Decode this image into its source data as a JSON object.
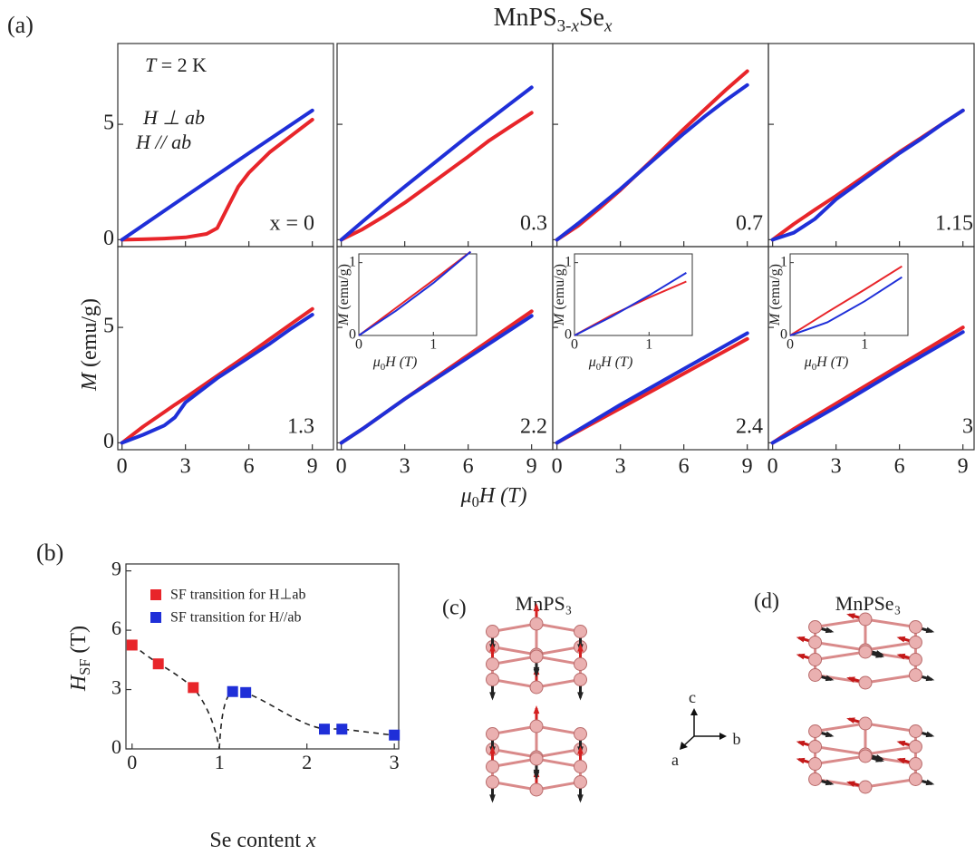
{
  "chart_data": [
    {
      "type": "line",
      "panel_label": "(a)",
      "title": [
        "MnPS",
        "3-",
        "x",
        "Se",
        "x"
      ],
      "x_label": [
        "μ",
        "0",
        "H (T)"
      ],
      "y_label": [
        "M",
        " (emu/g)"
      ],
      "annotation": [
        "T",
        " = 2 K"
      ],
      "xlim": [
        -0.2,
        10
      ],
      "ylim": [
        -0.3,
        8.5
      ],
      "xticks": [
        0,
        3,
        6,
        9
      ],
      "yticks": [
        0,
        5
      ],
      "series": [
        {
          "name": "H ⊥ ab",
          "color": "#e8252a"
        },
        {
          "name": "H // ab",
          "color": "#1f2fd8"
        }
      ],
      "subplots": [
        {
          "label": "x = 0",
          "lines": [
            {
              "x": [
                0,
                1,
                2,
                3,
                4,
                4.5,
                5,
                5.5,
                6,
                7,
                8,
                9
              ],
              "values": [
                0,
                0.02,
                0.05,
                0.1,
                0.25,
                0.5,
                1.4,
                2.3,
                2.9,
                3.8,
                4.5,
                5.2
              ]
            },
            {
              "x": [
                0,
                3,
                6,
                9
              ],
              "values": [
                0,
                1.88,
                3.75,
                5.6
              ]
            }
          ]
        },
        {
          "label": "0.3",
          "lines": [
            {
              "x": [
                0,
                1,
                2,
                3,
                4.5,
                6,
                7,
                8,
                9
              ],
              "values": [
                0,
                0.45,
                1.0,
                1.6,
                2.6,
                3.6,
                4.3,
                4.9,
                5.5
              ]
            },
            {
              "x": [
                0,
                1,
                2,
                3,
                4.5,
                6,
                7,
                8,
                9
              ],
              "values": [
                0,
                0.78,
                1.55,
                2.3,
                3.4,
                4.5,
                5.2,
                5.9,
                6.6
              ]
            }
          ]
        },
        {
          "label": "0.7",
          "lines": [
            {
              "x": [
                0,
                1,
                2,
                3,
                4.5,
                6,
                7,
                8,
                9
              ],
              "values": [
                0,
                0.6,
                1.35,
                2.15,
                3.45,
                4.8,
                5.65,
                6.5,
                7.3
              ]
            },
            {
              "x": [
                0,
                1,
                2,
                3,
                4.5,
                6,
                7,
                8,
                9
              ],
              "values": [
                0,
                0.7,
                1.45,
                2.2,
                3.4,
                4.6,
                5.35,
                6.05,
                6.7
              ]
            }
          ]
        },
        {
          "label": "1.15",
          "lines": [
            {
              "x": [
                0,
                1,
                2,
                3,
                4.5,
                6,
                7,
                8,
                9
              ],
              "values": [
                0,
                0.68,
                1.3,
                1.9,
                2.85,
                3.8,
                4.4,
                5.0,
                5.6
              ]
            },
            {
              "x": [
                0,
                1,
                2,
                3,
                4.5,
                6,
                7,
                8,
                9
              ],
              "values": [
                0,
                0.3,
                0.9,
                1.75,
                2.75,
                3.75,
                4.35,
                5.0,
                5.6
              ]
            }
          ]
        },
        {
          "label": "1.3",
          "lines": [
            {
              "x": [
                0,
                1,
                2,
                2.5,
                3,
                4.5,
                6,
                7,
                8,
                9
              ],
              "values": [
                0,
                0.7,
                1.33,
                1.65,
                1.95,
                2.9,
                3.85,
                4.5,
                5.15,
                5.8
              ]
            },
            {
              "x": [
                0,
                1,
                2,
                2.5,
                3,
                4.5,
                6,
                7,
                8,
                9
              ],
              "values": [
                0,
                0.35,
                0.75,
                1.1,
                1.75,
                2.8,
                3.7,
                4.3,
                4.95,
                5.55
              ]
            }
          ]
        },
        {
          "label": "2.2",
          "lines": [
            {
              "x": [
                0,
                1,
                3,
                6,
                9
              ],
              "values": [
                0,
                0.6,
                1.9,
                3.8,
                5.7
              ]
            },
            {
              "x": [
                0,
                1,
                3,
                6,
                9
              ],
              "values": [
                0,
                0.6,
                1.9,
                3.7,
                5.5
              ]
            }
          ],
          "inset": {
            "xlim": [
              0,
              1.58
            ],
            "ylim": [
              0,
              1.12
            ],
            "xticks": [
              0,
              1
            ],
            "yticks": [
              0,
              1
            ],
            "x_label": [
              "μ",
              "0",
              "H (T)"
            ],
            "y_label": [
              "M",
              " (emu/g)"
            ],
            "lines": [
              {
                "x": [
                  0,
                  0.5,
                  1,
                  1.5
                ],
                "values": [
                  0,
                  0.38,
                  0.76,
                  1.15
                ]
              },
              {
                "x": [
                  0,
                  0.5,
                  1,
                  1.5
                ],
                "values": [
                  0,
                  0.34,
                  0.72,
                  1.15
                ]
              }
            ]
          }
        },
        {
          "label": "2.4",
          "lines": [
            {
              "x": [
                0,
                1,
                3,
                6,
                9
              ],
              "values": [
                0,
                0.5,
                1.5,
                3.0,
                4.5
              ]
            },
            {
              "x": [
                0,
                1,
                3,
                6,
                9
              ],
              "values": [
                0,
                0.55,
                1.65,
                3.2,
                4.75
              ]
            }
          ],
          "inset": {
            "xlim": [
              0,
              1.58
            ],
            "ylim": [
              0,
              1.12
            ],
            "xticks": [
              0,
              1
            ],
            "yticks": [
              0,
              1
            ],
            "x_label": [
              "μ",
              "0",
              "H (T)"
            ],
            "y_label": [
              "M",
              " (emu/g)"
            ],
            "lines": [
              {
                "x": [
                  0,
                  0.5,
                  1,
                  1.5
                ],
                "values": [
                  0,
                  0.28,
                  0.52,
                  0.74
                ]
              },
              {
                "x": [
                  0,
                  0.5,
                  1,
                  1.5
                ],
                "values": [
                  0,
                  0.26,
                  0.55,
                  0.86
                ]
              }
            ]
          }
        },
        {
          "label": "3",
          "lines": [
            {
              "x": [
                0,
                1,
                3,
                6,
                9
              ],
              "values": [
                0,
                0.6,
                1.7,
                3.35,
                5.0
              ]
            },
            {
              "x": [
                0,
                1,
                3,
                6,
                9
              ],
              "values": [
                0,
                0.5,
                1.55,
                3.2,
                4.8
              ]
            }
          ],
          "inset": {
            "xlim": [
              0,
              1.58
            ],
            "ylim": [
              0,
              1.12
            ],
            "xticks": [
              0,
              1
            ],
            "yticks": [
              0,
              1
            ],
            "x_label": [
              "μ",
              "0",
              "H (T)"
            ],
            "y_label": [
              "M",
              " (emu/g)"
            ],
            "lines": [
              {
                "x": [
                  0,
                  0.5,
                  1,
                  1.5
                ],
                "values": [
                  0,
                  0.32,
                  0.63,
                  0.95
                ]
              },
              {
                "x": [
                  0,
                  0.5,
                  1,
                  1.5
                ],
                "values": [
                  0,
                  0.18,
                  0.47,
                  0.8
                ]
              }
            ]
          }
        }
      ]
    },
    {
      "type": "scatter",
      "panel_label": "(b)",
      "x_label": [
        "Se content ",
        "x"
      ],
      "y_label": [
        "H",
        "SF",
        " (T)"
      ],
      "xlim": [
        -0.07,
        3.05
      ],
      "ylim": [
        0,
        9.35
      ],
      "xticks": [
        0,
        1,
        2,
        3
      ],
      "yticks": [
        0,
        3,
        6,
        9
      ],
      "series": [
        {
          "name": "SF transition for H⊥ab",
          "color": "#e8252a",
          "x": [
            0,
            0.3,
            0.7
          ],
          "values": [
            5.25,
            4.3,
            3.1
          ]
        },
        {
          "name": "SF transition for H//ab",
          "color": "#1f2fd8",
          "x": [
            1.15,
            1.3,
            2.2,
            2.4,
            3
          ],
          "values": [
            2.9,
            2.85,
            1.0,
            1.0,
            0.7
          ]
        }
      ]
    }
  ],
  "structures": [
    {
      "panel_label": "(c)",
      "title": "MnPS₃"
    },
    {
      "panel_label": "(d)",
      "title": "MnPSe₃"
    }
  ],
  "axes_labels": [
    "c",
    "b",
    "a"
  ]
}
